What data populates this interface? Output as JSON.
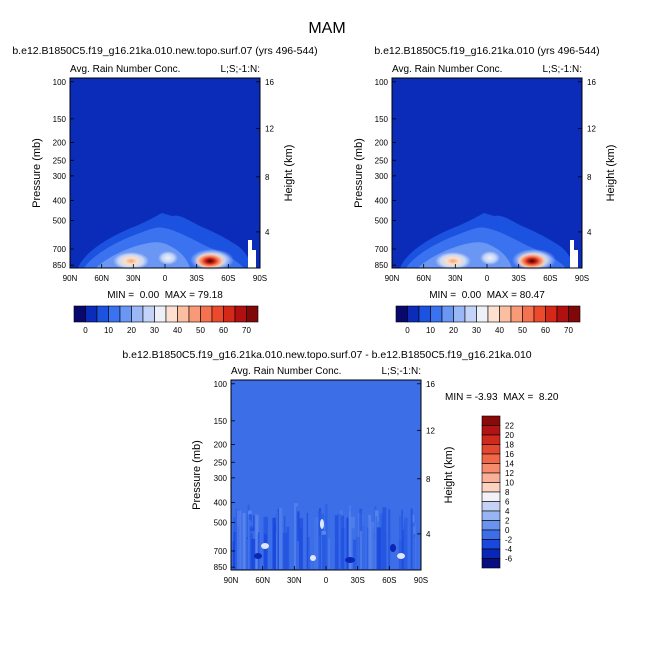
{
  "figure": {
    "title": "MAM"
  },
  "panels": [
    {
      "id": "left",
      "case_title": "b.e12.B1850C5.f19_g16.21ka.010.new.topo.surf.07 (yrs 496-544)",
      "var_title": "Avg. Rain Number Conc.",
      "corner_label": "L;S;-1:N:",
      "stats": "MIN =  0.00  MAX = 79.18"
    },
    {
      "id": "right",
      "case_title": "b.e12.B1850C5.f19_g16.21ka.010 (yrs 496-544)",
      "var_title": "Avg. Rain Number Conc.",
      "corner_label": "L;S;-1:N:",
      "stats": "MIN =  0.00  MAX = 80.47"
    },
    {
      "id": "diff",
      "case_title": "b.e12.B1850C5.f19_g16.21ka.010.new.topo.surf.07 - b.e12.B1850C5.f19_g16.21ka.010",
      "var_title": "Avg. Rain Number Conc.",
      "corner_label": "L;S;-1:N:",
      "stats": "MIN = -3.93  MAX =  8.20"
    }
  ],
  "chart_data": [
    {
      "type": "heatmap",
      "panel": "left",
      "xlabel": "",
      "ylabel": "Pressure (mb)",
      "ylabel_right": "Height (km)",
      "x_ticks": [
        "90N",
        "60N",
        "30N",
        "0",
        "30S",
        "60S",
        "90S"
      ],
      "y_ticks": [
        "100",
        "150",
        "200",
        "250",
        "300",
        "400",
        "500",
        "700",
        "850"
      ],
      "y_right_ticks": [
        "16",
        "12",
        "8",
        "4"
      ],
      "features": [
        {
          "lat": 57,
          "p": 850,
          "value": 30
        },
        {
          "lat": -43,
          "p": 850,
          "value": 79.18
        }
      ],
      "colorbar": {
        "levels": [
          "0",
          "10",
          "20",
          "30",
          "40",
          "50",
          "60",
          "70"
        ],
        "colors": [
          "#08086e",
          "#0a2cb8",
          "#1c52e0",
          "#3a72f0",
          "#6a96f4",
          "#9ab8f6",
          "#c4d4f8",
          "#eef0f8",
          "#fde0d0",
          "#fcbea0",
          "#f89a78",
          "#f47250",
          "#ec4a2c",
          "#d42818",
          "#b01010",
          "#800808"
        ]
      }
    },
    {
      "type": "heatmap",
      "panel": "right",
      "xlabel": "",
      "ylabel": "Pressure (mb)",
      "ylabel_right": "Height (km)",
      "x_ticks": [
        "90N",
        "60N",
        "30N",
        "0",
        "30S",
        "60S",
        "90S"
      ],
      "y_ticks": [
        "100",
        "150",
        "200",
        "250",
        "300",
        "400",
        "500",
        "700",
        "850"
      ],
      "y_right_ticks": [
        "16",
        "12",
        "8",
        "4"
      ],
      "features": [
        {
          "lat": 57,
          "p": 850,
          "value": 30
        },
        {
          "lat": -43,
          "p": 850,
          "value": 80.47
        }
      ],
      "colorbar": {
        "levels": [
          "0",
          "10",
          "20",
          "30",
          "40",
          "50",
          "60",
          "70"
        ],
        "colors": [
          "#08086e",
          "#0a2cb8",
          "#1c52e0",
          "#3a72f0",
          "#6a96f4",
          "#9ab8f6",
          "#c4d4f8",
          "#eef0f8",
          "#fde0d0",
          "#fcbea0",
          "#f89a78",
          "#f47250",
          "#ec4a2c",
          "#d42818",
          "#b01010",
          "#800808"
        ]
      }
    },
    {
      "type": "heatmap",
      "panel": "diff",
      "xlabel": "",
      "ylabel": "Pressure (mb)",
      "ylabel_right": "Height (km)",
      "x_ticks": [
        "90N",
        "60N",
        "30N",
        "0",
        "30S",
        "60S",
        "90S"
      ],
      "y_ticks": [
        "100",
        "150",
        "200",
        "250",
        "300",
        "400",
        "500",
        "700",
        "850"
      ],
      "y_right_ticks": [
        "16",
        "12",
        "8",
        "4"
      ],
      "colorbar": {
        "levels": [
          "22",
          "20",
          "18",
          "16",
          "14",
          "12",
          "10",
          "8",
          "6",
          "4",
          "2",
          "0",
          "-2",
          "-4",
          "-6"
        ],
        "colors": [
          "#8a0a0a",
          "#b01414",
          "#d02a1c",
          "#e44830",
          "#f06848",
          "#f68c6c",
          "#fab098",
          "#fcd2c0",
          "#f2f2f8",
          "#c4d2f6",
          "#98b4f2",
          "#6a92ee",
          "#3c6ee8",
          "#1a48dc",
          "#0a26b4",
          "#080e80"
        ]
      }
    }
  ]
}
